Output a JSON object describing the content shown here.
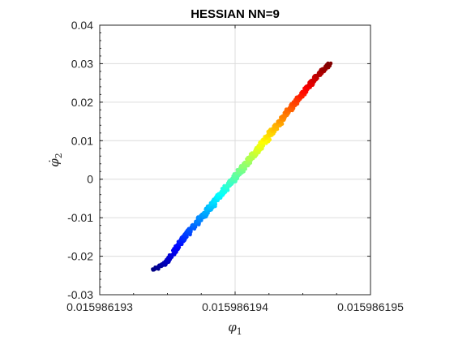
{
  "chart_data": {
    "type": "scatter",
    "title": "HESSIAN NN=9",
    "xlabel": "φ",
    "xlabel_subscript": "1",
    "ylabel": "φ̇",
    "ylabel_subscript": "2",
    "xlim": [
      0.015986193,
      0.015986195
    ],
    "ylim": [
      -0.03,
      0.04
    ],
    "x_ticks": [
      0.015986193,
      0.015986194,
      0.015986195
    ],
    "x_tick_labels": [
      "0.015986193",
      "0.015986194",
      "0.015986195"
    ],
    "y_ticks": [
      -0.03,
      -0.02,
      -0.01,
      0,
      0.01,
      0.02,
      0.03,
      0.04
    ],
    "y_tick_labels": [
      "-0.03",
      "-0.02",
      "-0.01",
      "0",
      "0.01",
      "0.02",
      "0.03",
      "0.04"
    ],
    "grid": true,
    "colormap": "jet",
    "trajectory": [
      {
        "x": 0.0159861934,
        "y": -0.0235
      },
      {
        "x": 0.0159861935,
        "y": -0.0215
      },
      {
        "x": 0.0159861936,
        "y": -0.0162
      },
      {
        "x": 0.0159861938,
        "y": -0.008
      },
      {
        "x": 0.015986194,
        "y": 0.0005
      },
      {
        "x": 0.0159861942,
        "y": 0.009
      },
      {
        "x": 0.0159861944,
        "y": 0.018
      },
      {
        "x": 0.0159861946,
        "y": 0.0265
      },
      {
        "x": 0.0159861947,
        "y": 0.03
      }
    ]
  }
}
